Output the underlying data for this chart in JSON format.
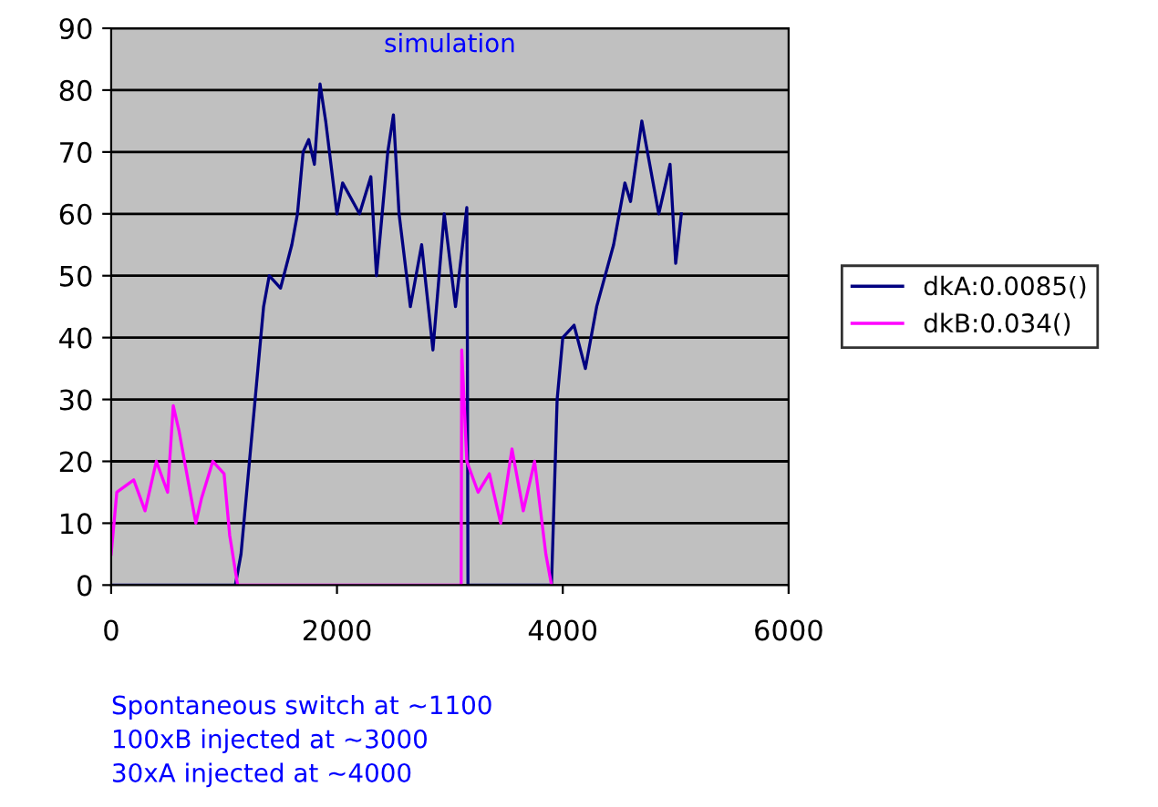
{
  "chart_data": {
    "type": "line",
    "title": "simulation",
    "xlim": [
      0,
      6000
    ],
    "xticks": [
      0,
      2000,
      4000,
      6000
    ],
    "ylim": [
      0,
      90
    ],
    "yticks": [
      0,
      10,
      20,
      30,
      40,
      50,
      60,
      70,
      80,
      90
    ],
    "grid": "y",
    "legend": "right",
    "annotations": [
      "Spontaneous switch at ~1100",
      "100xB injected at ~3000",
      "30xA injected at ~4000"
    ],
    "series": [
      {
        "name": "dkA:0.0085()",
        "color": "#000080",
        "x": [
          0,
          1100,
          1150,
          1250,
          1300,
          1350,
          1400,
          1500,
          1600,
          1650,
          1700,
          1750,
          1800,
          1850,
          1900,
          2000,
          2050,
          2200,
          2300,
          2350,
          2450,
          2500,
          2550,
          2650,
          2750,
          2850,
          2950,
          3050,
          3150,
          3155,
          3160,
          3900,
          3950,
          4000,
          4100,
          4200,
          4300,
          4450,
          4550,
          4600,
          4700,
          4750,
          4850,
          4950,
          5000,
          5050
        ],
        "values": [
          0,
          0,
          5,
          25,
          35,
          45,
          50,
          48,
          55,
          60,
          70,
          72,
          68,
          81,
          75,
          60,
          65,
          60,
          66,
          50,
          70,
          76,
          60,
          45,
          55,
          38,
          60,
          45,
          61,
          38,
          0,
          0,
          30,
          40,
          42,
          35,
          45,
          55,
          65,
          62,
          75,
          70,
          60,
          68,
          52,
          60
        ]
      },
      {
        "name": "dkB:0.034()",
        "color": "#ff00ff",
        "x": [
          0,
          50,
          200,
          300,
          400,
          500,
          550,
          600,
          700,
          750,
          800,
          900,
          1000,
          1050,
          1120,
          3100,
          3105,
          3150,
          3250,
          3350,
          3450,
          3550,
          3650,
          3750,
          3850,
          3900
        ],
        "values": [
          5,
          15,
          17,
          12,
          20,
          15,
          29,
          25,
          15,
          10,
          14,
          20,
          18,
          8,
          0,
          0,
          38,
          20,
          15,
          18,
          10,
          22,
          12,
          20,
          5,
          0
        ]
      }
    ]
  }
}
